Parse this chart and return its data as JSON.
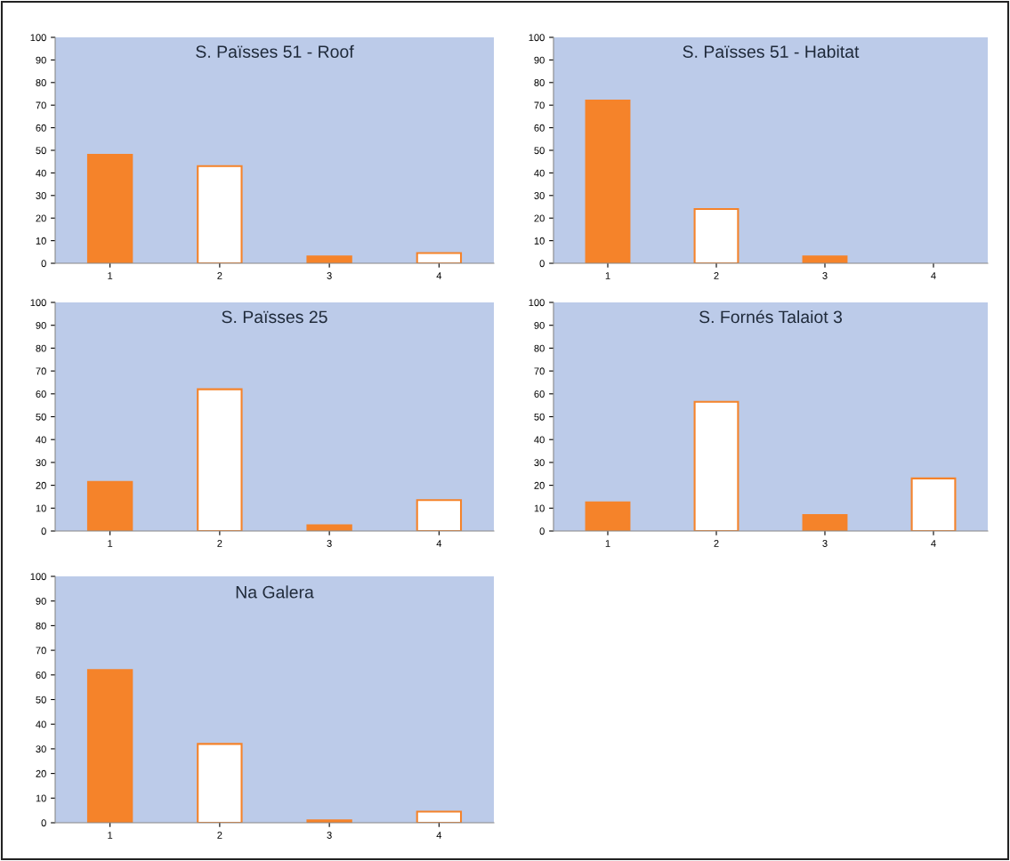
{
  "chart_data": [
    {
      "type": "bar",
      "title": "S. Païsses 51 - Roof",
      "categories": [
        "1",
        "2",
        "3",
        "4"
      ],
      "values": [
        48,
        43,
        3,
        4.5
      ],
      "color": "#f5832a",
      "colors": [
        "#f5832a",
        "#ffffff",
        "#f5832a",
        "#ffffff"
      ],
      "ylim": [
        0,
        100
      ],
      "yticks": [
        0,
        10,
        20,
        30,
        40,
        50,
        60,
        70,
        80,
        90,
        100
      ],
      "grid": false,
      "legend": false
    },
    {
      "type": "bar",
      "title": "S. Païsses 51 - Habitat",
      "categories": [
        "1",
        "2",
        "3",
        "4"
      ],
      "values": [
        72,
        24,
        3,
        null
      ],
      "color": "#f5832a",
      "colors": [
        "#f5832a",
        "#ffffff",
        "#f5832a",
        "#ffffff"
      ],
      "ylim": [
        0,
        100
      ],
      "yticks": [
        0,
        10,
        20,
        30,
        40,
        50,
        60,
        70,
        80,
        90,
        100
      ],
      "grid": false,
      "legend": false
    },
    {
      "type": "bar",
      "title": "S. Païsses 25",
      "categories": [
        "1",
        "2",
        "3",
        "4"
      ],
      "values": [
        21.5,
        62,
        2.5,
        13.5
      ],
      "color": "#f5832a",
      "colors": [
        "#f5832a",
        "#ffffff",
        "#f5832a",
        "#ffffff"
      ],
      "ylim": [
        0,
        100
      ],
      "yticks": [
        0,
        10,
        20,
        30,
        40,
        50,
        60,
        70,
        80,
        90,
        100
      ],
      "grid": false,
      "legend": false
    },
    {
      "type": "bar",
      "title": "S. Fornés Talaiot 3",
      "categories": [
        "1",
        "2",
        "3",
        "4"
      ],
      "values": [
        12.5,
        56.5,
        7,
        23
      ],
      "color": "#f5832a",
      "colors": [
        "#f5832a",
        "#ffffff",
        "#f5832a",
        "#ffffff"
      ],
      "ylim": [
        0,
        100
      ],
      "yticks": [
        0,
        10,
        20,
        30,
        40,
        50,
        60,
        70,
        80,
        90,
        100
      ],
      "grid": false,
      "legend": false
    },
    {
      "type": "bar",
      "title": "Na Galera",
      "categories": [
        "1",
        "2",
        "3",
        "4"
      ],
      "values": [
        62,
        32,
        1,
        4.5
      ],
      "color": "#f5832a",
      "colors": [
        "#f5832a",
        "#ffffff",
        "#f5832a",
        "#ffffff"
      ],
      "ylim": [
        0,
        100
      ],
      "yticks": [
        0,
        10,
        20,
        30,
        40,
        50,
        60,
        70,
        80,
        90,
        100
      ],
      "grid": false,
      "legend": false
    }
  ]
}
